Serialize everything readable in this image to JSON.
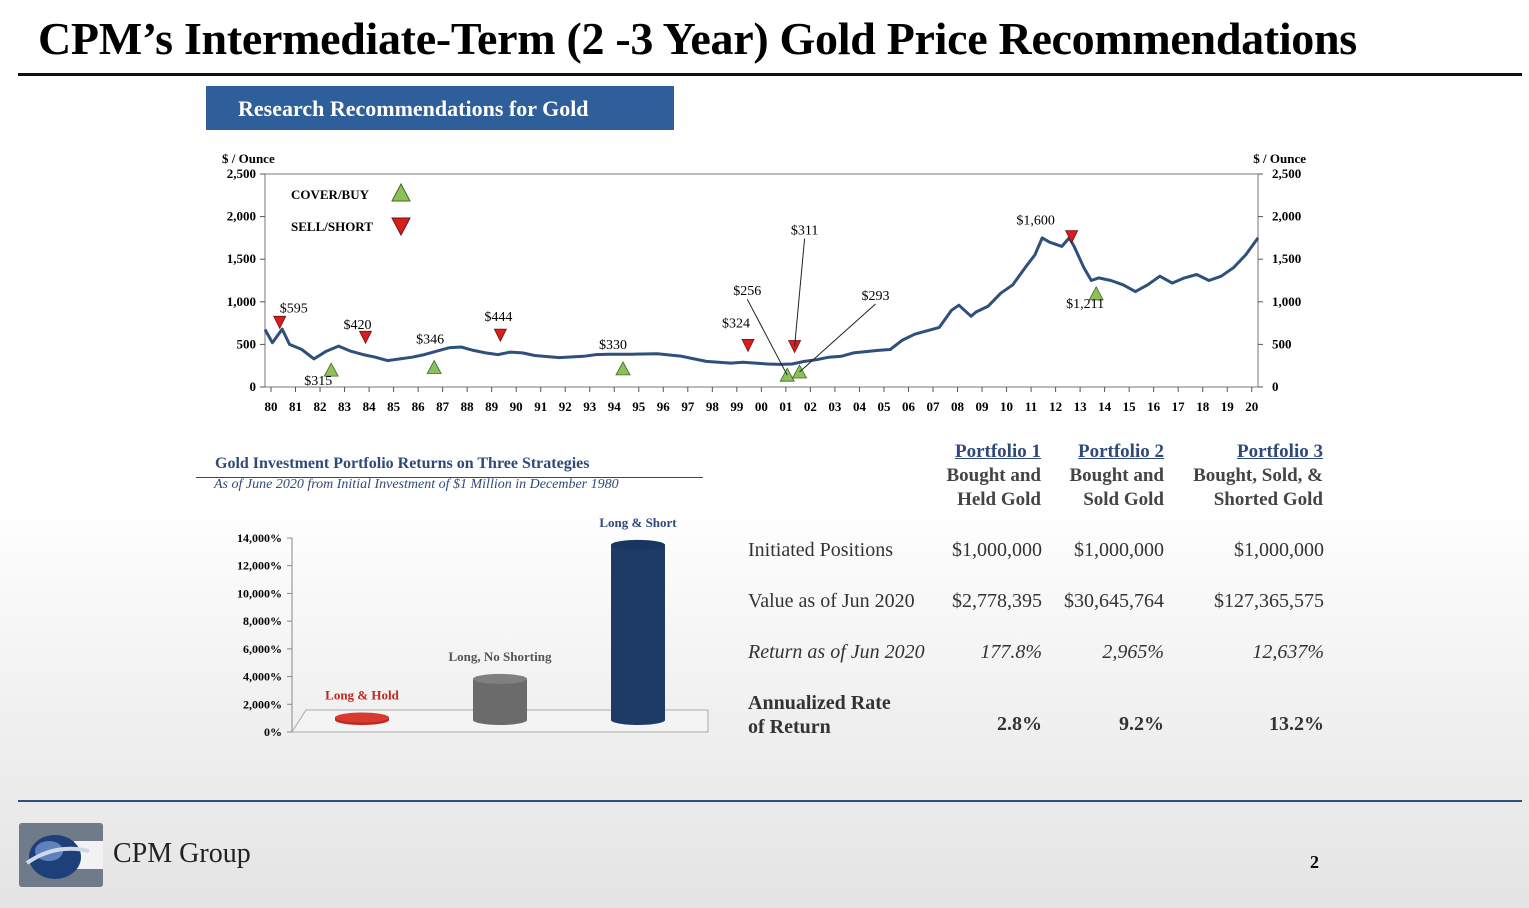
{
  "title": "CPM’s Intermediate-Term (2 -3 Year) Gold Price Recommendations",
  "banner": "Research Recommendations for Gold",
  "colors": {
    "banner": "#2e5f9a",
    "line": "#2f4f7c",
    "buy": "#8dc05a",
    "sell": "#d62020",
    "bar_navy": "#1e3a66",
    "bar_gray": "#6b6b6b",
    "bar_red": "#c0271e"
  },
  "chart_data": [
    {
      "type": "line",
      "title": "Research Recommendations for Gold",
      "ylabel_left": "$ / Ounce",
      "ylabel_right": "$ / Ounce",
      "ylim": [
        0,
        2500
      ],
      "yticks": [
        0,
        500,
        1000,
        1500,
        2000,
        2500
      ],
      "ytick_labels": [
        "0",
        "500",
        "1,000",
        "1,500",
        "2,000",
        "2,500"
      ],
      "x_labels": [
        "80",
        "81",
        "82",
        "83",
        "84",
        "85",
        "86",
        "87",
        "88",
        "89",
        "90",
        "91",
        "92",
        "93",
        "94",
        "95",
        "96",
        "97",
        "98",
        "99",
        "00",
        "01",
        "02",
        "03",
        "04",
        "05",
        "06",
        "07",
        "08",
        "09",
        "10",
        "11",
        "12",
        "13",
        "14",
        "15",
        "16",
        "17",
        "18",
        "19",
        "20"
      ],
      "legend": [
        {
          "label": "COVER/BUY",
          "marker": "up-triangle"
        },
        {
          "label": "SELL/SHORT",
          "marker": "down-triangle"
        }
      ],
      "series": [
        {
          "name": "Gold price",
          "x": [
            1980.0,
            1980.3,
            1980.7,
            1981.0,
            1981.5,
            1982.0,
            1982.5,
            1983.0,
            1983.5,
            1984.0,
            1984.5,
            1985.0,
            1985.5,
            1986.0,
            1986.5,
            1987.0,
            1987.5,
            1988.0,
            1988.5,
            1989.0,
            1989.5,
            1990.0,
            1990.5,
            1991.0,
            1992.0,
            1993.0,
            1993.5,
            1994.0,
            1995.0,
            1996.0,
            1997.0,
            1997.5,
            1998.0,
            1999.0,
            1999.5,
            2000.0,
            2000.5,
            2001.0,
            2001.5,
            2002.0,
            2002.5,
            2003.0,
            2003.5,
            2004.0,
            2005.0,
            2005.5,
            2006.0,
            2006.5,
            2007.0,
            2007.5,
            2008.0,
            2008.3,
            2008.8,
            2009.0,
            2009.5,
            2010.0,
            2010.5,
            2011.0,
            2011.4,
            2011.7,
            2012.0,
            2012.5,
            2012.8,
            2013.0,
            2013.4,
            2013.7,
            2014.0,
            2014.5,
            2015.0,
            2015.5,
            2016.0,
            2016.5,
            2017.0,
            2017.5,
            2018.0,
            2018.5,
            2019.0,
            2019.5,
            2020.0,
            2020.5
          ],
          "values": [
            675,
            520,
            680,
            500,
            440,
            330,
            420,
            480,
            420,
            380,
            350,
            310,
            330,
            350,
            380,
            420,
            460,
            470,
            430,
            400,
            380,
            410,
            400,
            370,
            345,
            360,
            380,
            385,
            385,
            390,
            360,
            330,
            300,
            280,
            290,
            280,
            270,
            265,
            270,
            300,
            320,
            350,
            360,
            400,
            430,
            440,
            550,
            620,
            660,
            700,
            900,
            960,
            830,
            880,
            950,
            1100,
            1200,
            1400,
            1550,
            1750,
            1700,
            1650,
            1750,
            1650,
            1400,
            1250,
            1280,
            1250,
            1200,
            1120,
            1200,
            1300,
            1220,
            1280,
            1320,
            1250,
            1300,
            1400,
            1550,
            1750
          ]
        }
      ],
      "annotations": [
        {
          "label": "$595",
          "x": 1980.6,
          "value": 595,
          "signal": "sell"
        },
        {
          "label": "$315",
          "x": 1982.7,
          "value": 315,
          "signal": "buy"
        },
        {
          "label": "$420",
          "x": 1984.1,
          "value": 420,
          "signal": "sell"
        },
        {
          "label": "$346",
          "x": 1986.9,
          "value": 346,
          "signal": "buy"
        },
        {
          "label": "$444",
          "x": 1989.6,
          "value": 444,
          "signal": "sell"
        },
        {
          "label": "$330",
          "x": 1994.6,
          "value": 330,
          "signal": "buy"
        },
        {
          "label": "$324",
          "x": 1999.7,
          "value": 324,
          "signal": "sell"
        },
        {
          "label": "$256",
          "x": 2001.3,
          "value": 256,
          "signal": "buy"
        },
        {
          "label": "$311",
          "x": 2001.6,
          "value": 311,
          "signal": "sell"
        },
        {
          "label": "$293",
          "x": 2001.8,
          "value": 293,
          "signal": "buy"
        },
        {
          "label": "$1,600",
          "x": 2012.9,
          "value": 1600,
          "signal": "sell"
        },
        {
          "label": "$1,211",
          "x": 2013.9,
          "value": 1211,
          "signal": "buy"
        }
      ]
    },
    {
      "type": "bar",
      "title": "Gold Investment Portfolio Returns on Three Strategies",
      "subtitle": "As of June 2020 from Initial Investment of $1 Million in December 1980",
      "categories": [
        "Long & Hold",
        "Long, No Shorting",
        "Long & Short"
      ],
      "values": [
        177.8,
        2965,
        12637
      ],
      "unit": "%",
      "ylim": [
        0,
        14000
      ],
      "ytick_labels": [
        "0%",
        "2,000%",
        "4,000%",
        "6,000%",
        "8,000%",
        "10,000%",
        "12,000%",
        "14,000%"
      ],
      "ytick_values": [
        0,
        2000,
        4000,
        6000,
        8000,
        10000,
        12000,
        14000
      ]
    }
  ],
  "table": {
    "portfolios": [
      {
        "name": "Portfolio 1",
        "desc1": "Bought and",
        "desc2": "Held Gold"
      },
      {
        "name": "Portfolio 2",
        "desc1": "Bought and",
        "desc2": "Sold Gold"
      },
      {
        "name": "Portfolio 3",
        "desc1": "Bought, Sold, &",
        "desc2": "Shorted Gold"
      }
    ],
    "rows": {
      "initiated": {
        "label": "Initiated Positions",
        "values": [
          "$1,000,000",
          "$1,000,000",
          "$1,000,000"
        ]
      },
      "value": {
        "label": "Value as of Jun 2020",
        "values": [
          "$2,778,395",
          "$30,645,764",
          "$127,365,575"
        ]
      },
      "ret": {
        "label": "Return as of Jun 2020",
        "values": [
          "177.8%",
          "2,965%",
          "12,637%"
        ]
      },
      "annual": {
        "label1": "Annualized Rate",
        "label2": "of Return",
        "values": [
          "2.8%",
          "9.2%",
          "13.2%"
        ]
      }
    }
  },
  "footer": {
    "company": "CPM Group",
    "page": "2"
  }
}
